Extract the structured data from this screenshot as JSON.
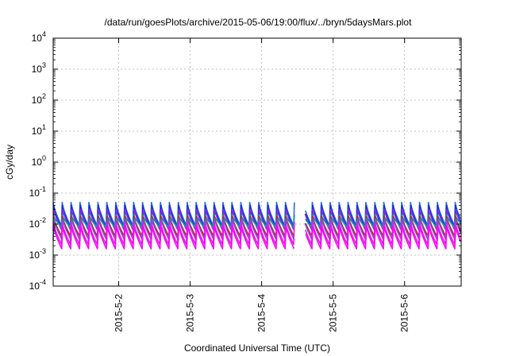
{
  "chart_data": {
    "type": "line",
    "title": "/data/run/goesPlots/archive/2015-05-06/19:00/flux/../bryn/5daysMars.plot",
    "xlabel": "Coordinated Universal Time (UTC)",
    "ylabel": "cGy/day",
    "y_scale": "log",
    "ylim": [
      0.0001,
      10000
    ],
    "xlim": [
      "2015-05-01 02:00",
      "2015-05-06 19:00"
    ],
    "grid": true,
    "y_ticks": [
      {
        "base": "10",
        "exp": "-4"
      },
      {
        "base": "10",
        "exp": "-3"
      },
      {
        "base": "10",
        "exp": "-2"
      },
      {
        "base": "10",
        "exp": "-1"
      },
      {
        "base": "10",
        "exp": "0"
      },
      {
        "base": "10",
        "exp": "1"
      },
      {
        "base": "10",
        "exp": "2"
      },
      {
        "base": "10",
        "exp": "3"
      },
      {
        "base": "10",
        "exp": "4"
      }
    ],
    "x_ticks": [
      "2015-5-2",
      "2015-5-3",
      "2015-5-4",
      "2015-5-5",
      "2015-5-6"
    ],
    "sawtooth_period_hours": 3,
    "series": [
      {
        "color": "#2a6fdb",
        "peak": 0.05,
        "trough": 0.009
      },
      {
        "color": "#1a2bd0",
        "peak": 0.04,
        "trough": 0.007
      },
      {
        "color": "#8a2be2",
        "peak": 0.03,
        "trough": 0.006
      },
      {
        "color": "#00a0a0",
        "peak": 0.02,
        "trough": 0.008
      },
      {
        "color": "#cc1a1a",
        "peak": 0.018,
        "trough": 0.004
      },
      {
        "color": "#6a5acd",
        "peak": 0.015,
        "trough": 0.003
      },
      {
        "color": "#e020e0",
        "peak": 0.012,
        "trough": 0.0022
      },
      {
        "color": "#ff00ff",
        "peak": 0.009,
        "trough": 0.0016
      }
    ],
    "gaps": [
      {
        "from": "2015-05-04 11:00",
        "to": "2015-05-04 14:30"
      }
    ]
  }
}
